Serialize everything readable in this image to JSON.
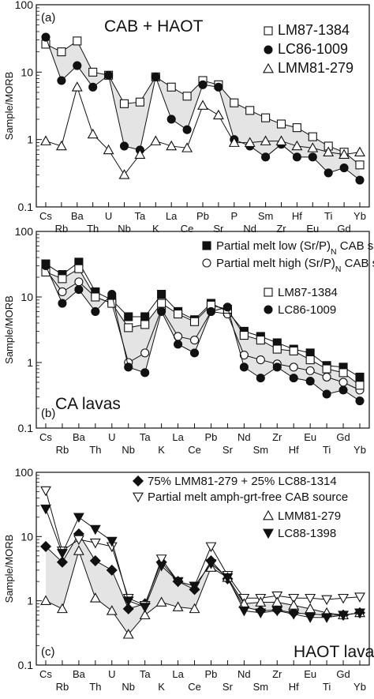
{
  "chart_data": [
    {
      "type": "line",
      "panel_label": "(a)",
      "title": "CAB + HAOT",
      "ylabel": "Sample/MORB",
      "yscale": "log",
      "ylim": [
        0.1,
        100
      ],
      "yticks": [
        "0.1",
        "1",
        "10",
        "100"
      ],
      "grid": false,
      "legend_position": "top-right",
      "categories": [
        "Cs",
        "Rb",
        "Ba",
        "Th",
        "U",
        "Nb",
        "Ta",
        "K",
        "La",
        "Ce",
        "Pb",
        "Sr",
        "P",
        "Nd",
        "Sm",
        "Zr",
        "Hf",
        "Eu",
        "Ti",
        "Gd",
        "Yb"
      ],
      "shade_between": [
        "LM87-1384",
        "LC86-1009"
      ],
      "series": [
        {
          "name": "LM87-1384",
          "marker": "square-open",
          "values": [
            26,
            20,
            29,
            10,
            9,
            3.4,
            3.6,
            8.5,
            6,
            4.4,
            7.5,
            6.5,
            3.5,
            2.7,
            2.1,
            1.7,
            1.5,
            1.1,
            0.8,
            0.65,
            0.42
          ]
        },
        {
          "name": "LC86-1009",
          "marker": "circle-filled",
          "values": [
            33,
            7.5,
            12.5,
            6,
            9,
            0.8,
            0.7,
            8.5,
            2,
            1.4,
            6.5,
            6,
            1,
            0.8,
            0.55,
            0.85,
            0.55,
            0.55,
            0.32,
            0.38,
            0.25
          ]
        },
        {
          "name": "LMM81-279",
          "marker": "triangle-open",
          "values": [
            0.95,
            0.8,
            6,
            1.2,
            0.7,
            0.3,
            0.6,
            0.95,
            0.8,
            0.75,
            3.2,
            2.3,
            0.9,
            0.9,
            0.95,
            0.95,
            0.8,
            0.75,
            0.65,
            0.6,
            0.65
          ]
        }
      ]
    },
    {
      "type": "line",
      "panel_label": "(b)",
      "title": "CA lavas",
      "ylabel": "Sample/MORB",
      "yscale": "log",
      "ylim": [
        0.1,
        100
      ],
      "yticks": [
        "0.1",
        "1",
        "10",
        "100"
      ],
      "grid": false,
      "legend_position": "top-right",
      "categories": [
        "Cs",
        "Rb",
        "Ba",
        "Th",
        "U",
        "Nb",
        "Ta",
        "K",
        "La",
        "Ce",
        "Pb",
        "Sr",
        "Nd",
        "Sm",
        "Zr",
        "Hf",
        "Eu",
        "Ti",
        "Gd",
        "Yb"
      ],
      "shade_between": [
        "LM87-1384",
        "LC86-1009"
      ],
      "series": [
        {
          "name": "Partial melt low (Sr/P)",
          "name_subscript": "N",
          "name_suffix": " CAB source",
          "marker": "square-filled",
          "values": [
            32,
            22,
            34,
            12,
            9,
            5,
            5,
            11,
            6,
            4.5,
            8,
            6,
            3,
            2.5,
            2,
            1.6,
            1.4,
            0.9,
            0.85,
            0.6
          ]
        },
        {
          "name": "Partial melt high (Sr/P)",
          "name_subscript": "N",
          "name_suffix": " CAB source",
          "marker": "circle-open",
          "values": [
            26,
            12,
            17,
            10,
            8,
            1,
            1.4,
            6.5,
            2.5,
            2.2,
            6,
            5.5,
            1.3,
            1.1,
            0.95,
            0.85,
            0.75,
            0.6,
            0.5,
            0.38
          ]
        },
        {
          "name": "LM87-1384",
          "marker": "square-open",
          "values": [
            24,
            19,
            27,
            10,
            8,
            3.4,
            3.8,
            8,
            5.5,
            4.2,
            7.5,
            6.5,
            2.6,
            2.2,
            1.6,
            1.5,
            1.1,
            0.8,
            0.7,
            0.45
          ]
        },
        {
          "name": "LC86-1009",
          "marker": "circle-filled",
          "values": [
            30,
            8,
            13,
            6,
            11,
            0.85,
            0.7,
            6,
            1.9,
            1.4,
            6,
            7,
            0.85,
            0.58,
            0.85,
            0.58,
            0.52,
            0.33,
            0.38,
            0.26
          ]
        }
      ]
    },
    {
      "type": "line",
      "panel_label": "(c)",
      "title": "HAOT lavas",
      "ylabel": "Sample/MORB",
      "yscale": "log",
      "ylim": [
        0.1,
        100
      ],
      "yticks": [
        "0.1",
        "1",
        "10",
        "100"
      ],
      "grid": false,
      "legend_position": "top-right",
      "categories": [
        "Cs",
        "Rb",
        "Ba",
        "Th",
        "U",
        "Nb",
        "Ta",
        "K",
        "La",
        "Ce",
        "Pb",
        "Sr",
        "Nd",
        "Sm",
        "Zr",
        "Hf",
        "Eu",
        "Ti",
        "Gd",
        "Yb"
      ],
      "shade_between": [
        "75% LMM81-279 + 25% LC88-1314",
        "LMM81-279"
      ],
      "series": [
        {
          "name": "75% LMM81-279 + 25% LC88-1314",
          "marker": "diamond-filled",
          "values": [
            7,
            4,
            11,
            4.2,
            3,
            0.75,
            0.9,
            4,
            2,
            1.5,
            4.2,
            2.2,
            0.8,
            0.7,
            0.72,
            0.65,
            0.62,
            0.6,
            0.6,
            0.65
          ]
        },
        {
          "name": "Partial melt amph-grt-free CAB source",
          "marker": "triangle-down-open",
          "values": [
            52,
            6,
            9,
            8,
            7,
            1.1,
            0.85,
            4.5,
            2,
            1.7,
            7,
            2.5,
            1.1,
            1.1,
            1.2,
            1.1,
            1.1,
            1.05,
            1.1,
            1.15
          ]
        },
        {
          "name": "LMM81-279",
          "marker": "triangle-open",
          "values": [
            1,
            0.75,
            6,
            1.1,
            0.7,
            0.3,
            0.6,
            0.95,
            0.8,
            0.75,
            3.3,
            2.3,
            0.9,
            0.95,
            0.95,
            0.85,
            0.75,
            0.65,
            0.6,
            0.65
          ]
        },
        {
          "name": "LC88-1398",
          "marker": "triangle-down-filled",
          "values": [
            27,
            5.5,
            20,
            13,
            8.5,
            1,
            0.8,
            3.5,
            2,
            1.7,
            3.8,
            2.3,
            0.7,
            0.65,
            0.7,
            0.62,
            0.55,
            0.55,
            0.6,
            0.65
          ]
        }
      ]
    }
  ]
}
